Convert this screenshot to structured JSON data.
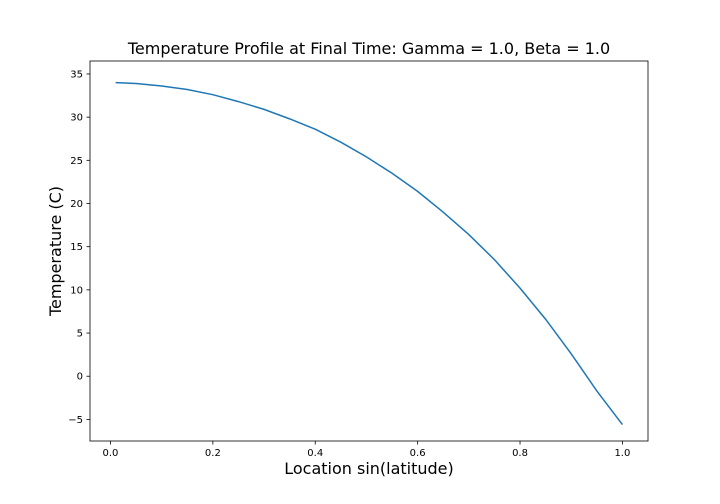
{
  "chart_data": {
    "type": "line",
    "title": "Temperature Profile at Final Time: Gamma = 1.0, Beta = 1.0",
    "xlabel": "Location sin(latitude)",
    "ylabel": "Temperature (C)",
    "xlim": [
      -0.04,
      1.05
    ],
    "ylim": [
      -7.5,
      36.5
    ],
    "xticks": [
      0.0,
      0.2,
      0.4,
      0.6,
      0.8,
      1.0
    ],
    "xtick_labels": [
      "0.0",
      "0.2",
      "0.4",
      "0.6",
      "0.8",
      "1.0"
    ],
    "yticks": [
      -5,
      0,
      5,
      10,
      15,
      20,
      25,
      30,
      35
    ],
    "ytick_labels": [
      "−5",
      "0",
      "5",
      "10",
      "15",
      "20",
      "25",
      "30",
      "35"
    ],
    "grid": false,
    "line_color": "#1f77b4",
    "series": [
      {
        "x": [
          0.01,
          0.05,
          0.1,
          0.15,
          0.2,
          0.25,
          0.3,
          0.35,
          0.4,
          0.45,
          0.5,
          0.55,
          0.6,
          0.65,
          0.7,
          0.75,
          0.8,
          0.85,
          0.9,
          0.95,
          1.0
        ],
        "values": [
          34.0,
          33.9,
          33.6,
          33.2,
          32.6,
          31.8,
          30.9,
          29.8,
          28.6,
          27.1,
          25.4,
          23.5,
          21.4,
          19.0,
          16.4,
          13.5,
          10.2,
          6.6,
          2.6,
          -1.7,
          -5.6
        ]
      }
    ]
  }
}
